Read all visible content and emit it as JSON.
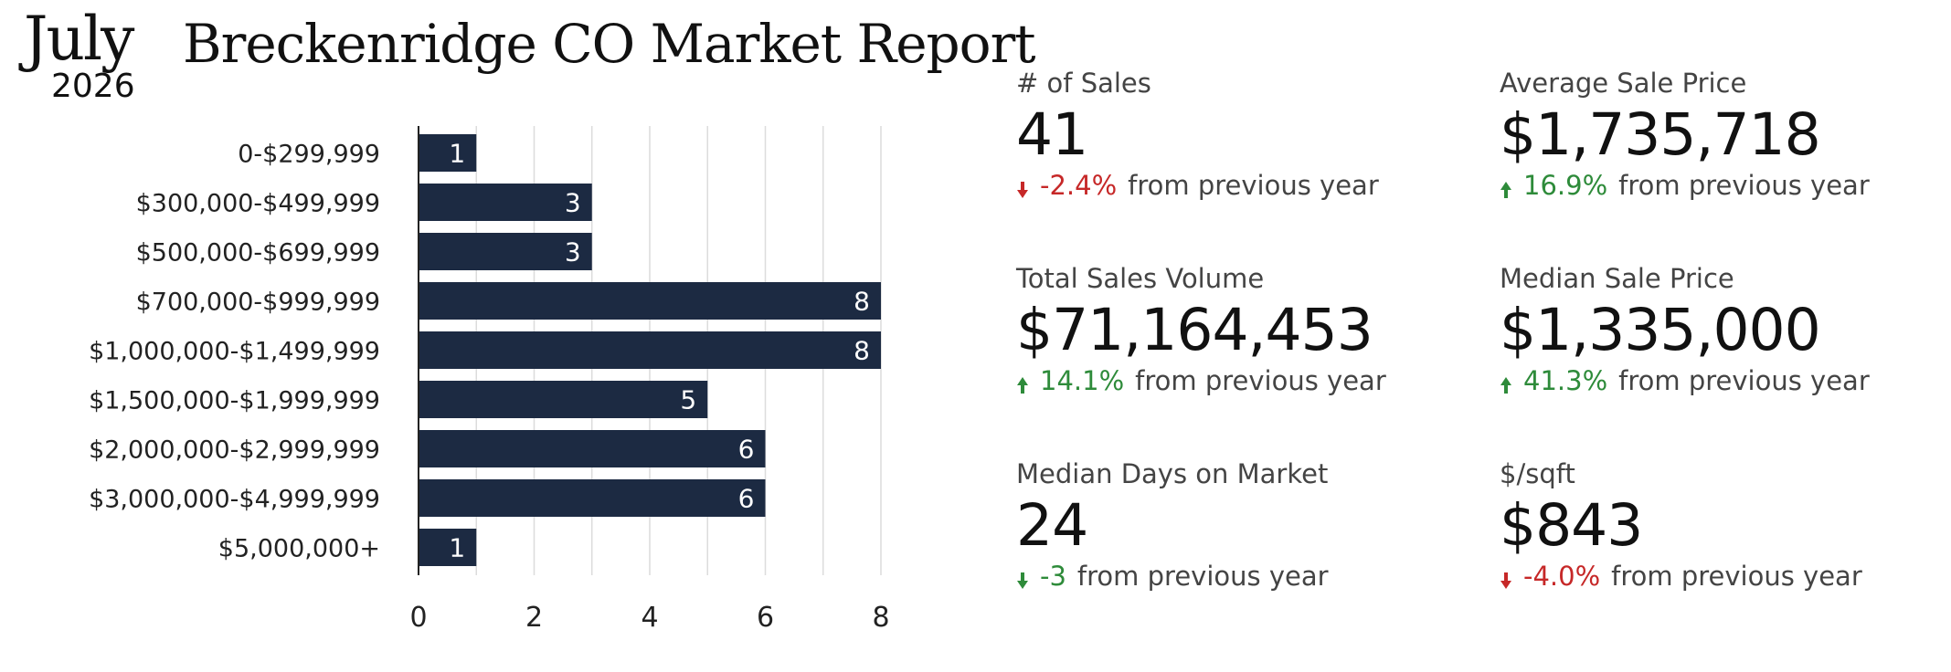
{
  "header": {
    "month": "July",
    "year": "2026",
    "title": "Breckenridge CO Market Report"
  },
  "chart_data": {
    "type": "bar",
    "orientation": "horizontal",
    "categories": [
      "0-$299,999",
      "$300,000-$499,999",
      "$500,000-$699,999",
      "$700,000-$999,999",
      "$1,000,000-$1,499,999",
      "$1,500,000-$1,999,999",
      "$2,000,000-$2,999,999",
      "$3,000,000-$4,999,999",
      "$5,000,000+"
    ],
    "values": [
      1,
      3,
      3,
      8,
      8,
      5,
      6,
      6,
      1
    ],
    "xticks": [
      "0",
      "2",
      "4",
      "6",
      "8"
    ],
    "xlim": [
      0,
      8
    ],
    "grid": "vertical",
    "bar_color": "#1c2a42",
    "title": "",
    "xlabel": "",
    "ylabel": ""
  },
  "stats": [
    {
      "label": "# of Sales",
      "value": "41",
      "direction": "down",
      "trend": "bad",
      "change": "-2.4%",
      "suffix": "from previous year"
    },
    {
      "label": "Average Sale Price",
      "value": "$1,735,718",
      "direction": "up",
      "trend": "good",
      "change": "16.9%",
      "suffix": "from previous year"
    },
    {
      "label": "Total Sales Volume",
      "value": "$71,164,453",
      "direction": "up",
      "trend": "good",
      "change": "14.1%",
      "suffix": "from previous year"
    },
    {
      "label": "Median Sale Price",
      "value": "$1,335,000",
      "direction": "up",
      "trend": "good",
      "change": "41.3%",
      "suffix": "from previous year"
    },
    {
      "label": "Median Days on Market",
      "value": "24",
      "direction": "down",
      "trend": "good",
      "change": "-3",
      "suffix": "from previous year"
    },
    {
      "label": "$/sqft",
      "value": "$843",
      "direction": "down",
      "trend": "bad",
      "change": "-4.0%",
      "suffix": "from previous year"
    }
  ],
  "colors": {
    "good": "#2e8b3a",
    "bad": "#c62828",
    "bar": "#1c2a42",
    "grid": "#dcdcdc"
  }
}
